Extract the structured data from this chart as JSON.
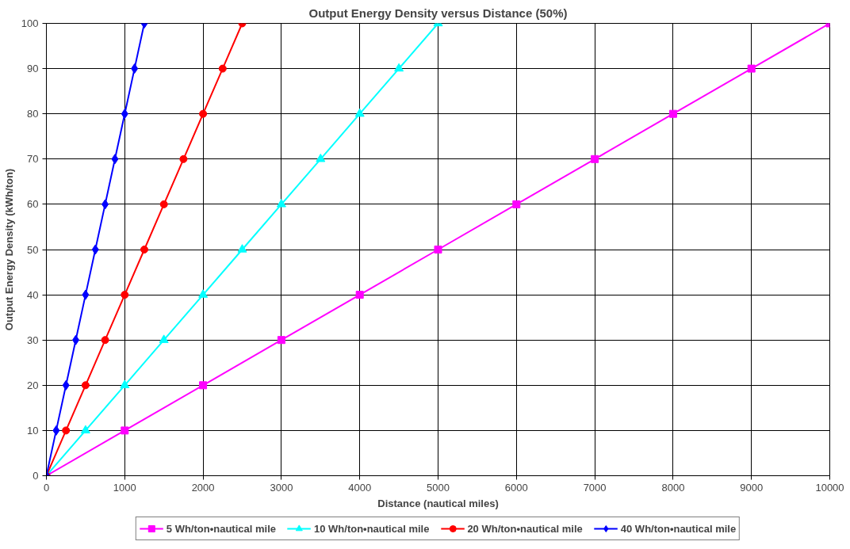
{
  "chart_data": {
    "type": "line",
    "title": "Output Energy Density versus Distance (50%)",
    "xlabel": "Distance (nautical miles)",
    "ylabel": "Output Energy Density (kWh/ton)",
    "xlim": [
      0,
      10000
    ],
    "ylim": [
      0,
      100
    ],
    "xticks": [
      0,
      1000,
      2000,
      3000,
      4000,
      5000,
      6000,
      7000,
      8000,
      9000,
      10000
    ],
    "yticks": [
      0,
      10,
      20,
      30,
      40,
      50,
      60,
      70,
      80,
      90,
      100
    ],
    "grid": true,
    "legend": "bottom",
    "line_style": "solid",
    "series": [
      {
        "name": "5 Wh/ton•nautical mile",
        "color": "#ff00ff",
        "marker": "square",
        "x": [
          0,
          1000,
          2000,
          3000,
          4000,
          5000,
          6000,
          7000,
          8000,
          9000,
          10000
        ],
        "values": [
          0,
          10,
          20,
          30,
          40,
          50,
          60,
          70,
          80,
          90,
          100
        ]
      },
      {
        "name": "10 Wh/ton•nautical mile",
        "color": "#00ffff",
        "marker": "triangle",
        "x": [
          0,
          500,
          1000,
          1500,
          2000,
          2500,
          3000,
          3500,
          4000,
          4500,
          5000
        ],
        "values": [
          0,
          10,
          20,
          30,
          40,
          50,
          60,
          70,
          80,
          90,
          100
        ]
      },
      {
        "name": "20 Wh/ton•nautical mile",
        "color": "#ff0000",
        "marker": "circle",
        "x": [
          0,
          250,
          500,
          750,
          1000,
          1250,
          1500,
          1750,
          2000,
          2250,
          2500
        ],
        "values": [
          0,
          10,
          20,
          30,
          40,
          50,
          60,
          70,
          80,
          90,
          100
        ]
      },
      {
        "name": "40 Wh/ton•nautical mile",
        "color": "#0000ff",
        "marker": "diamond",
        "x": [
          0,
          125,
          250,
          375,
          500,
          625,
          750,
          875,
          1000,
          1125,
          1250
        ],
        "values": [
          0,
          10,
          20,
          30,
          40,
          50,
          60,
          70,
          80,
          90,
          100
        ]
      }
    ]
  }
}
